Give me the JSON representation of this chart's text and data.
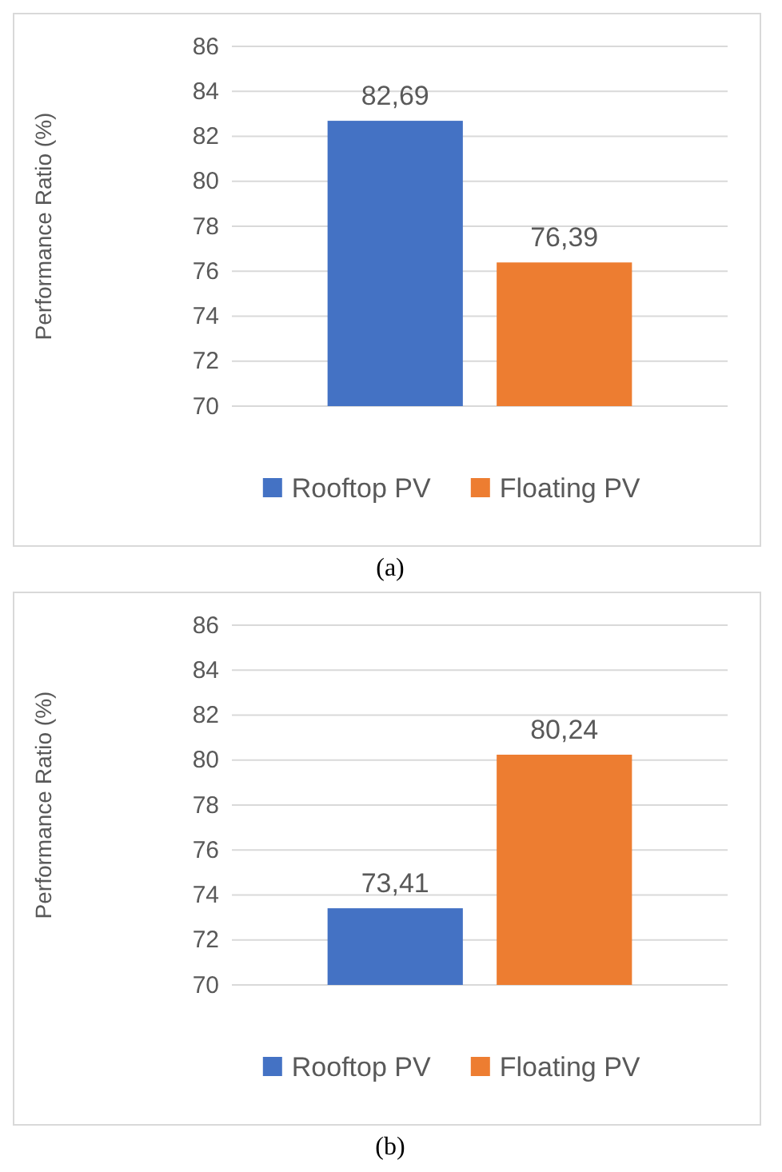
{
  "chart_data": [
    {
      "type": "bar",
      "categories": [
        null
      ],
      "ylabel": "Performance Ratio (%)",
      "ylim": [
        70,
        86
      ],
      "yticks": [
        70,
        72,
        74,
        76,
        78,
        80,
        82,
        84,
        86
      ],
      "grid": "y",
      "legend": "bottom",
      "annotations": [
        "(a)"
      ],
      "series": [
        {
          "name": "Rooftop PV",
          "color": "#4472c4",
          "values": [
            82.69
          ],
          "value_labels": [
            "82,69"
          ]
        },
        {
          "name": "Floating PV",
          "color": "#ed7d31",
          "values": [
            76.39
          ],
          "value_labels": [
            "76,39"
          ]
        }
      ]
    },
    {
      "type": "bar",
      "categories": [
        null
      ],
      "ylabel": "Performance Ratio (%)",
      "ylim": [
        70,
        86
      ],
      "yticks": [
        70,
        72,
        74,
        76,
        78,
        80,
        82,
        84,
        86
      ],
      "grid": "y",
      "legend": "bottom",
      "annotations": [
        "(b)"
      ],
      "series": [
        {
          "name": "Rooftop PV",
          "color": "#4472c4",
          "values": [
            73.41
          ],
          "value_labels": [
            "73,41"
          ]
        },
        {
          "name": "Floating PV",
          "color": "#ed7d31",
          "values": [
            80.24
          ],
          "value_labels": [
            "80,24"
          ]
        }
      ]
    }
  ]
}
